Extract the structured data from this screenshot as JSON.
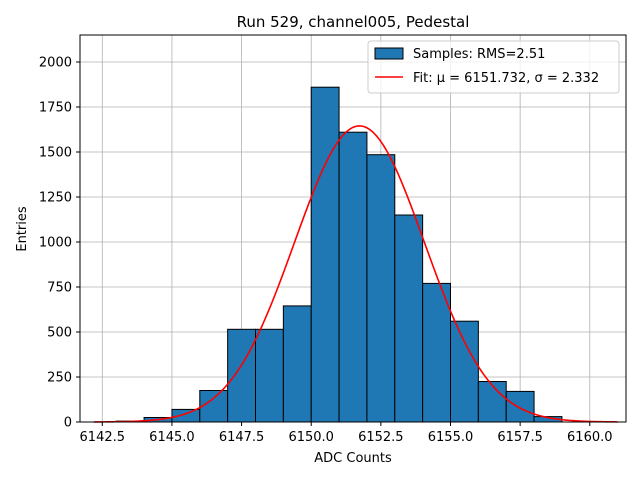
{
  "chart_data": {
    "type": "bar",
    "title": "Run 529, channel005, Pedestal",
    "xlabel": "ADC Counts",
    "ylabel": "Entries",
    "xlim": [
      6141.7,
      6161.3
    ],
    "ylim": [
      0,
      2150
    ],
    "xticks": [
      6142.5,
      6145.0,
      6147.5,
      6150.0,
      6152.5,
      6155.0,
      6157.5,
      6160.0
    ],
    "xtick_labels": [
      "6142.5",
      "6145.0",
      "6147.5",
      "6150.0",
      "6152.5",
      "6155.0",
      "6157.5",
      "6160.0"
    ],
    "yticks": [
      0,
      250,
      500,
      750,
      1000,
      1250,
      1500,
      1750,
      2000
    ],
    "ytick_labels": [
      "0",
      "250",
      "500",
      "750",
      "1000",
      "1250",
      "1500",
      "1750",
      "2000"
    ],
    "grid": true,
    "bin_edges": [
      6143,
      6144,
      6145,
      6146,
      6147,
      6148,
      6149,
      6150,
      6151,
      6152,
      6153,
      6154,
      6155,
      6156,
      6157,
      6158,
      6159
    ],
    "values": [
      5,
      25,
      70,
      175,
      515,
      515,
      645,
      1860,
      1610,
      1485,
      1150,
      770,
      560,
      225,
      170,
      30
    ],
    "fit": {
      "mu": 6151.732,
      "sigma": 2.332,
      "amplitude": 1645,
      "x_range": [
        6142.2,
        6161.0
      ]
    },
    "series": [
      {
        "name": "Samples: RMS=2.51",
        "type": "bar",
        "color": "#1f77b4"
      },
      {
        "name": "Fit: μ = 6151.732, σ = 2.332",
        "type": "line",
        "color": "#ff0000"
      }
    ],
    "legend_location": "top-right"
  }
}
